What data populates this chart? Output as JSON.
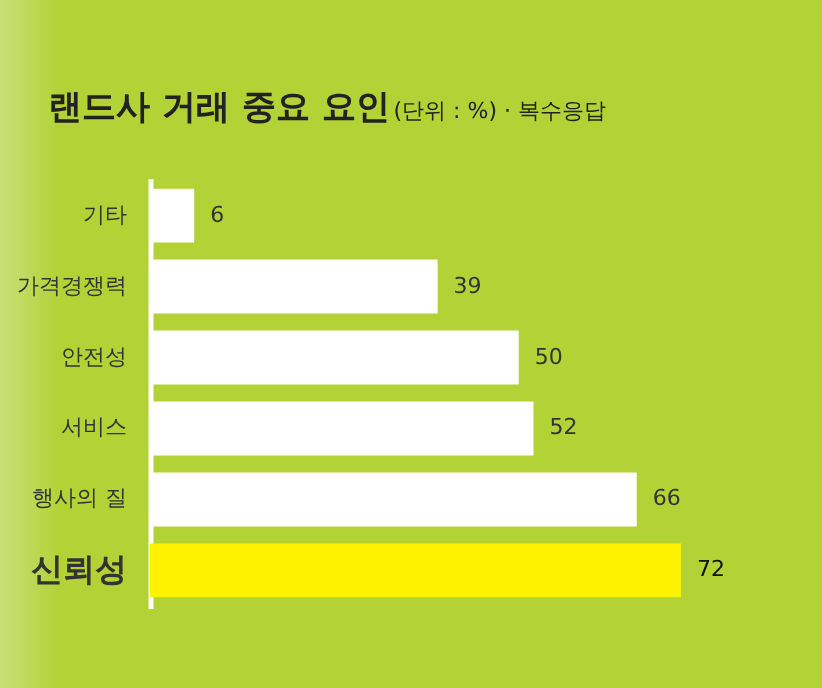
{
  "chart_data": {
    "type": "bar",
    "orientation": "horizontal",
    "title": "랜드사 거래 중요 요인",
    "subtitle": "(단위 : %) · 복수응답",
    "categories": [
      "기타",
      "가격경쟁력",
      "안전성",
      "서비스",
      "행사의 질",
      "신뢰성"
    ],
    "values": [
      6,
      39,
      50,
      52,
      66,
      72
    ],
    "colors": [
      "#ffffff",
      "#ffffff",
      "#ffffff",
      "#ffffff",
      "#ffffff",
      "#fff200"
    ],
    "data_labels": true
  }
}
